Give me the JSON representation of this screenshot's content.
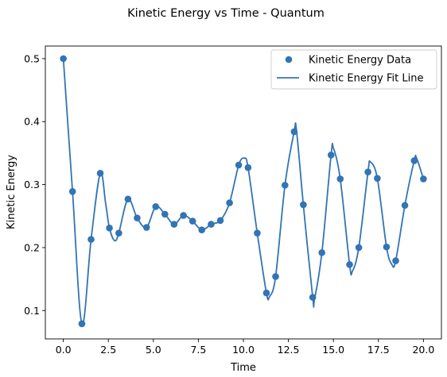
{
  "chart_data": {
    "type": "scatter",
    "title": "Kinetic Energy vs Time - Quantum",
    "xlabel": "Time",
    "ylabel": "Kinetic Energy",
    "xlim": [
      -1.0,
      21.0
    ],
    "ylim": [
      0.055,
      0.52
    ],
    "xticks": [
      "0.0",
      "2.5",
      "5.0",
      "7.5",
      "10.0",
      "12.5",
      "15.0",
      "17.5",
      "20.0"
    ],
    "yticks": [
      "0.1",
      "0.2",
      "0.3",
      "0.4",
      "0.5"
    ],
    "grid": false,
    "legend_position": "top-right",
    "color": "#3274b5",
    "series": [
      {
        "name": "Kinetic Energy Data",
        "kind": "scatter",
        "x": [
          0.0,
          0.51,
          1.03,
          1.54,
          2.05,
          2.56,
          3.08,
          3.59,
          4.1,
          4.62,
          5.13,
          5.64,
          6.15,
          6.67,
          7.18,
          7.69,
          8.21,
          8.72,
          9.23,
          9.74,
          10.26,
          10.77,
          11.28,
          11.79,
          12.31,
          12.82,
          13.33,
          13.85,
          14.36,
          14.87,
          15.38,
          15.9,
          16.41,
          16.92,
          17.44,
          17.95,
          18.46,
          18.97,
          19.49,
          20.0
        ],
        "y": [
          0.5,
          0.289,
          0.079,
          0.213,
          0.318,
          0.231,
          0.223,
          0.277,
          0.247,
          0.232,
          0.265,
          0.253,
          0.237,
          0.251,
          0.242,
          0.228,
          0.237,
          0.243,
          0.271,
          0.331,
          0.327,
          0.223,
          0.128,
          0.154,
          0.299,
          0.384,
          0.268,
          0.121,
          0.192,
          0.347,
          0.309,
          0.173,
          0.2,
          0.32,
          0.31,
          0.201,
          0.179,
          0.267,
          0.338,
          0.309
        ]
      },
      {
        "name": "Kinetic Energy Fit Line",
        "kind": "line",
        "x": [
          0.0,
          0.51,
          1.03,
          1.54,
          2.05,
          2.35,
          2.56,
          2.85,
          3.08,
          3.59,
          4.1,
          4.62,
          5.13,
          5.64,
          6.15,
          6.67,
          7.18,
          7.69,
          8.21,
          8.72,
          9.23,
          9.74,
          10.05,
          10.26,
          10.77,
          11.28,
          11.45,
          11.79,
          12.31,
          12.82,
          12.95,
          13.33,
          13.85,
          13.95,
          14.36,
          14.87,
          15.0,
          15.38,
          15.9,
          16.05,
          16.41,
          16.92,
          17.05,
          17.44,
          17.95,
          18.25,
          18.46,
          18.97,
          19.49,
          19.62,
          20.0
        ],
        "y": [
          0.5,
          0.289,
          0.079,
          0.213,
          0.318,
          0.27,
          0.231,
          0.211,
          0.223,
          0.277,
          0.247,
          0.232,
          0.265,
          0.253,
          0.237,
          0.251,
          0.242,
          0.228,
          0.237,
          0.243,
          0.271,
          0.331,
          0.342,
          0.327,
          0.223,
          0.128,
          0.122,
          0.154,
          0.299,
          0.384,
          0.386,
          0.268,
          0.121,
          0.118,
          0.192,
          0.347,
          0.358,
          0.309,
          0.173,
          0.162,
          0.2,
          0.32,
          0.336,
          0.31,
          0.201,
          0.173,
          0.179,
          0.267,
          0.338,
          0.342,
          0.309
        ]
      }
    ]
  }
}
